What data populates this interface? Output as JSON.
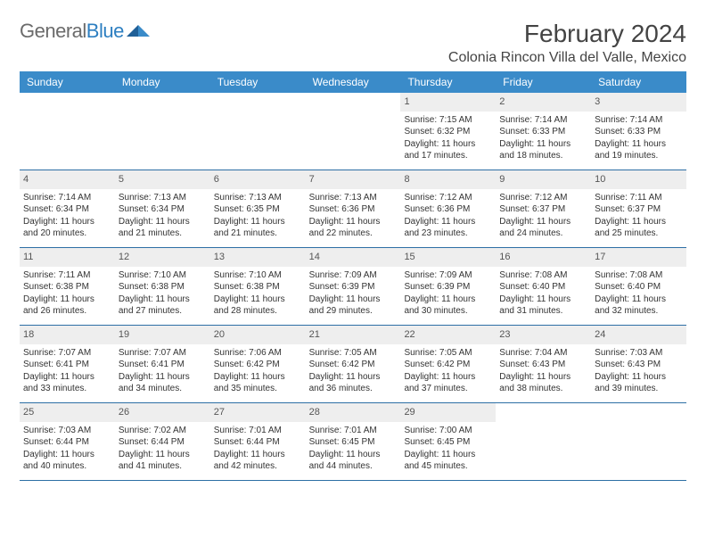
{
  "brand": {
    "name_gray": "General",
    "name_blue": "Blue"
  },
  "title": {
    "month": "February 2024",
    "location": "Colonia Rincon Villa del Valle, Mexico"
  },
  "colors": {
    "header_bg": "#3a8bc9",
    "rule": "#2d6fa5",
    "datenum_bg": "#eeeeee",
    "text": "#333333",
    "logo_blue_dark": "#1f5f97",
    "logo_blue_light": "#3a8bc9"
  },
  "dayheads": [
    "Sunday",
    "Monday",
    "Tuesday",
    "Wednesday",
    "Thursday",
    "Friday",
    "Saturday"
  ],
  "weeks": [
    [
      {
        "empty": true
      },
      {
        "empty": true
      },
      {
        "empty": true
      },
      {
        "empty": true
      },
      {
        "n": "1",
        "sr": "Sunrise: 7:15 AM",
        "ss": "Sunset: 6:32 PM",
        "d1": "Daylight: 11 hours",
        "d2": "and 17 minutes."
      },
      {
        "n": "2",
        "sr": "Sunrise: 7:14 AM",
        "ss": "Sunset: 6:33 PM",
        "d1": "Daylight: 11 hours",
        "d2": "and 18 minutes."
      },
      {
        "n": "3",
        "sr": "Sunrise: 7:14 AM",
        "ss": "Sunset: 6:33 PM",
        "d1": "Daylight: 11 hours",
        "d2": "and 19 minutes."
      }
    ],
    [
      {
        "n": "4",
        "sr": "Sunrise: 7:14 AM",
        "ss": "Sunset: 6:34 PM",
        "d1": "Daylight: 11 hours",
        "d2": "and 20 minutes."
      },
      {
        "n": "5",
        "sr": "Sunrise: 7:13 AM",
        "ss": "Sunset: 6:34 PM",
        "d1": "Daylight: 11 hours",
        "d2": "and 21 minutes."
      },
      {
        "n": "6",
        "sr": "Sunrise: 7:13 AM",
        "ss": "Sunset: 6:35 PM",
        "d1": "Daylight: 11 hours",
        "d2": "and 21 minutes."
      },
      {
        "n": "7",
        "sr": "Sunrise: 7:13 AM",
        "ss": "Sunset: 6:36 PM",
        "d1": "Daylight: 11 hours",
        "d2": "and 22 minutes."
      },
      {
        "n": "8",
        "sr": "Sunrise: 7:12 AM",
        "ss": "Sunset: 6:36 PM",
        "d1": "Daylight: 11 hours",
        "d2": "and 23 minutes."
      },
      {
        "n": "9",
        "sr": "Sunrise: 7:12 AM",
        "ss": "Sunset: 6:37 PM",
        "d1": "Daylight: 11 hours",
        "d2": "and 24 minutes."
      },
      {
        "n": "10",
        "sr": "Sunrise: 7:11 AM",
        "ss": "Sunset: 6:37 PM",
        "d1": "Daylight: 11 hours",
        "d2": "and 25 minutes."
      }
    ],
    [
      {
        "n": "11",
        "sr": "Sunrise: 7:11 AM",
        "ss": "Sunset: 6:38 PM",
        "d1": "Daylight: 11 hours",
        "d2": "and 26 minutes."
      },
      {
        "n": "12",
        "sr": "Sunrise: 7:10 AM",
        "ss": "Sunset: 6:38 PM",
        "d1": "Daylight: 11 hours",
        "d2": "and 27 minutes."
      },
      {
        "n": "13",
        "sr": "Sunrise: 7:10 AM",
        "ss": "Sunset: 6:38 PM",
        "d1": "Daylight: 11 hours",
        "d2": "and 28 minutes."
      },
      {
        "n": "14",
        "sr": "Sunrise: 7:09 AM",
        "ss": "Sunset: 6:39 PM",
        "d1": "Daylight: 11 hours",
        "d2": "and 29 minutes."
      },
      {
        "n": "15",
        "sr": "Sunrise: 7:09 AM",
        "ss": "Sunset: 6:39 PM",
        "d1": "Daylight: 11 hours",
        "d2": "and 30 minutes."
      },
      {
        "n": "16",
        "sr": "Sunrise: 7:08 AM",
        "ss": "Sunset: 6:40 PM",
        "d1": "Daylight: 11 hours",
        "d2": "and 31 minutes."
      },
      {
        "n": "17",
        "sr": "Sunrise: 7:08 AM",
        "ss": "Sunset: 6:40 PM",
        "d1": "Daylight: 11 hours",
        "d2": "and 32 minutes."
      }
    ],
    [
      {
        "n": "18",
        "sr": "Sunrise: 7:07 AM",
        "ss": "Sunset: 6:41 PM",
        "d1": "Daylight: 11 hours",
        "d2": "and 33 minutes."
      },
      {
        "n": "19",
        "sr": "Sunrise: 7:07 AM",
        "ss": "Sunset: 6:41 PM",
        "d1": "Daylight: 11 hours",
        "d2": "and 34 minutes."
      },
      {
        "n": "20",
        "sr": "Sunrise: 7:06 AM",
        "ss": "Sunset: 6:42 PM",
        "d1": "Daylight: 11 hours",
        "d2": "and 35 minutes."
      },
      {
        "n": "21",
        "sr": "Sunrise: 7:05 AM",
        "ss": "Sunset: 6:42 PM",
        "d1": "Daylight: 11 hours",
        "d2": "and 36 minutes."
      },
      {
        "n": "22",
        "sr": "Sunrise: 7:05 AM",
        "ss": "Sunset: 6:42 PM",
        "d1": "Daylight: 11 hours",
        "d2": "and 37 minutes."
      },
      {
        "n": "23",
        "sr": "Sunrise: 7:04 AM",
        "ss": "Sunset: 6:43 PM",
        "d1": "Daylight: 11 hours",
        "d2": "and 38 minutes."
      },
      {
        "n": "24",
        "sr": "Sunrise: 7:03 AM",
        "ss": "Sunset: 6:43 PM",
        "d1": "Daylight: 11 hours",
        "d2": "and 39 minutes."
      }
    ],
    [
      {
        "n": "25",
        "sr": "Sunrise: 7:03 AM",
        "ss": "Sunset: 6:44 PM",
        "d1": "Daylight: 11 hours",
        "d2": "and 40 minutes."
      },
      {
        "n": "26",
        "sr": "Sunrise: 7:02 AM",
        "ss": "Sunset: 6:44 PM",
        "d1": "Daylight: 11 hours",
        "d2": "and 41 minutes."
      },
      {
        "n": "27",
        "sr": "Sunrise: 7:01 AM",
        "ss": "Sunset: 6:44 PM",
        "d1": "Daylight: 11 hours",
        "d2": "and 42 minutes."
      },
      {
        "n": "28",
        "sr": "Sunrise: 7:01 AM",
        "ss": "Sunset: 6:45 PM",
        "d1": "Daylight: 11 hours",
        "d2": "and 44 minutes."
      },
      {
        "n": "29",
        "sr": "Sunrise: 7:00 AM",
        "ss": "Sunset: 6:45 PM",
        "d1": "Daylight: 11 hours",
        "d2": "and 45 minutes."
      },
      {
        "empty": true
      },
      {
        "empty": true
      }
    ]
  ]
}
